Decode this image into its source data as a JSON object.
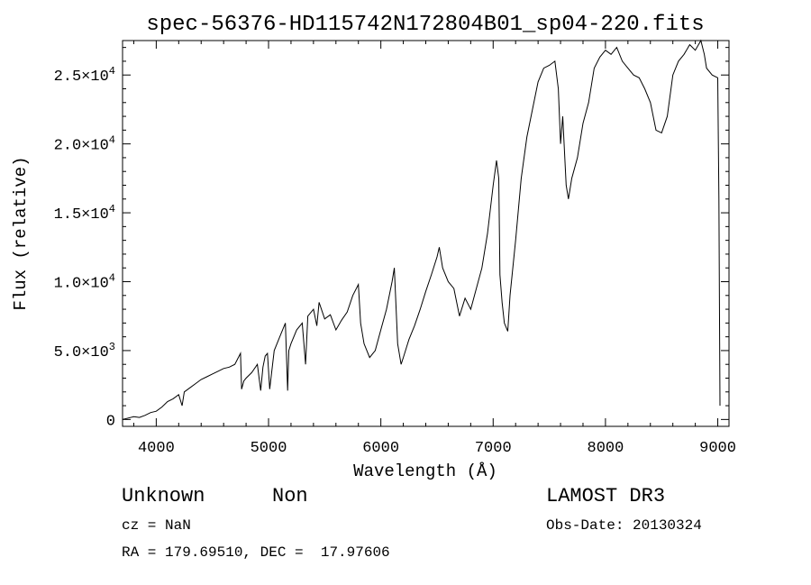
{
  "chart_data": {
    "type": "line",
    "title": "spec-56376-HD115742N172804B01_sp04-220.fits",
    "xlabel": "Wavelength (Å)",
    "ylabel": "Flux (relative)",
    "xlim": [
      3700,
      9100
    ],
    "ylim": [
      -500,
      27500
    ],
    "x_ticks": [
      {
        "value": 4000,
        "label": "4000"
      },
      {
        "value": 5000,
        "label": "5000"
      },
      {
        "value": 6000,
        "label": "6000"
      },
      {
        "value": 7000,
        "label": "7000"
      },
      {
        "value": 8000,
        "label": "8000"
      },
      {
        "value": 9000,
        "label": "9000"
      }
    ],
    "y_ticks": [
      {
        "value": 0,
        "mantissa": "0",
        "exponent": ""
      },
      {
        "value": 5000,
        "mantissa": "5.0×10",
        "exponent": "3"
      },
      {
        "value": 10000,
        "mantissa": "1.0×10",
        "exponent": "4"
      },
      {
        "value": 15000,
        "mantissa": "1.5×10",
        "exponent": "4"
      },
      {
        "value": 20000,
        "mantissa": "2.0×10",
        "exponent": "4"
      },
      {
        "value": 25000,
        "mantissa": "2.5×10",
        "exponent": "4"
      }
    ],
    "grid": false,
    "series": [
      {
        "name": "flux",
        "x": [
          3700,
          3750,
          3800,
          3850,
          3900,
          3950,
          4000,
          4050,
          4100,
          4150,
          4200,
          4230,
          4250,
          4300,
          4350,
          4400,
          4450,
          4500,
          4550,
          4600,
          4650,
          4700,
          4750,
          4760,
          4780,
          4800,
          4850,
          4900,
          4930,
          4950,
          4970,
          4990,
          5010,
          5050,
          5100,
          5150,
          5170,
          5180,
          5200,
          5250,
          5300,
          5330,
          5350,
          5400,
          5430,
          5450,
          5500,
          5550,
          5600,
          5650,
          5700,
          5750,
          5800,
          5820,
          5850,
          5900,
          5950,
          6000,
          6050,
          6100,
          6120,
          6150,
          6180,
          6200,
          6250,
          6300,
          6350,
          6400,
          6450,
          6500,
          6520,
          6550,
          6600,
          6650,
          6700,
          6750,
          6800,
          6850,
          6900,
          6950,
          7000,
          7030,
          7050,
          7060,
          7080,
          7100,
          7130,
          7150,
          7200,
          7250,
          7300,
          7350,
          7400,
          7450,
          7500,
          7550,
          7580,
          7600,
          7620,
          7650,
          7670,
          7700,
          7750,
          7800,
          7850,
          7900,
          7950,
          8000,
          8050,
          8100,
          8150,
          8200,
          8250,
          8300,
          8350,
          8400,
          8450,
          8500,
          8550,
          8600,
          8650,
          8700,
          8750,
          8800,
          8850,
          8880,
          8900,
          8950,
          9000,
          9010,
          9020
        ],
        "y": [
          0,
          100,
          200,
          150,
          300,
          500,
          600,
          900,
          1300,
          1500,
          1800,
          1000,
          2000,
          2300,
          2600,
          2900,
          3100,
          3300,
          3500,
          3700,
          3800,
          4000,
          4800,
          2200,
          2800,
          3000,
          3400,
          4000,
          2100,
          3800,
          4600,
          4800,
          2200,
          5000,
          6000,
          7000,
          2100,
          5000,
          5500,
          6500,
          7000,
          4000,
          7500,
          8000,
          6800,
          8500,
          7300,
          7600,
          6500,
          7200,
          7800,
          9000,
          9800,
          7000,
          5500,
          4500,
          5000,
          6500,
          8000,
          10000,
          11000,
          5500,
          4000,
          4500,
          5800,
          6800,
          8000,
          9300,
          10500,
          11800,
          12500,
          11000,
          10000,
          9500,
          7500,
          8800,
          8000,
          9500,
          11000,
          13500,
          17000,
          18800,
          17500,
          10500,
          8500,
          7000,
          6400,
          9000,
          13000,
          17500,
          20500,
          22500,
          24500,
          25500,
          25700,
          26000,
          24000,
          20000,
          22000,
          17000,
          16000,
          17500,
          19000,
          21500,
          23000,
          25500,
          26300,
          26800,
          26500,
          27000,
          26000,
          25500,
          25000,
          24800,
          24000,
          23000,
          21000,
          20800,
          22000,
          25000,
          26000,
          26500,
          27200,
          26800,
          27500,
          26500,
          25500,
          25000,
          24800,
          16000,
          1000
        ]
      }
    ]
  },
  "info": {
    "class_text": "Unknown",
    "subclass_text": "Non",
    "survey_text": "LAMOST DR3",
    "redshift_text": "cz = NaN",
    "obs_date_text": "Obs-Date: 20130324",
    "coords_text": "RA = 179.69510, DEC =  17.97606"
  }
}
